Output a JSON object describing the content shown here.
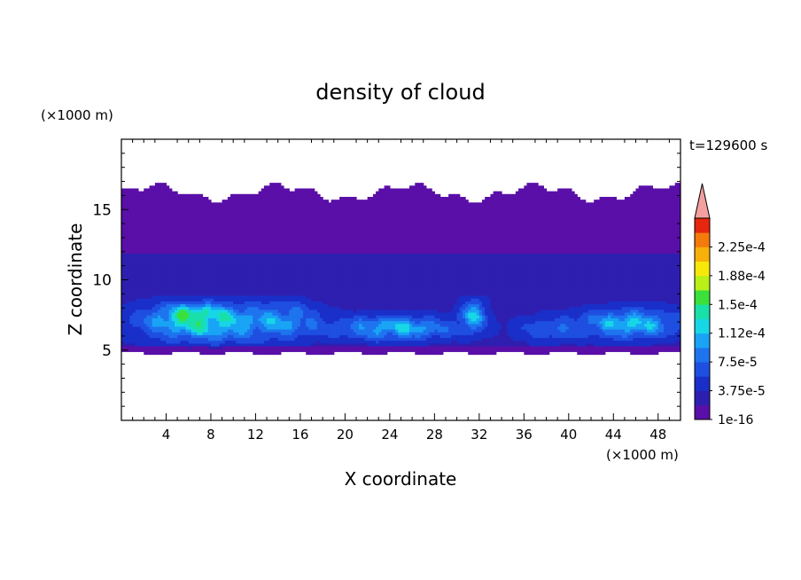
{
  "chart_data": {
    "type": "heatmap",
    "title": "density of cloud",
    "time_label": "t=129600 s",
    "xlabel": "X coordinate",
    "ylabel": "Z coordinate",
    "x_unit": "(×1000 m)",
    "y_unit": "(×1000 m)",
    "xlim": [
      0,
      50
    ],
    "ylim": [
      0,
      20
    ],
    "x_ticks": [
      4,
      8,
      12,
      16,
      20,
      24,
      28,
      32,
      36,
      40,
      44,
      48
    ],
    "y_ticks": [
      5,
      10,
      15
    ],
    "colorbar": {
      "tick_labels": [
        "1e-16",
        "3.75e-5",
        "7.5e-5",
        "1.12e-4",
        "1.5e-4",
        "1.88e-4",
        "2.25e-4"
      ],
      "levels": [
        1e-16,
        1.875e-05,
        3.75e-05,
        5.625e-05,
        7.5e-05,
        9.375e-05,
        0.0001125,
        0.00013125,
        0.00015,
        0.00016875,
        0.0001875,
        0.00020625,
        0.000225,
        0.00024375
      ],
      "colors": [
        "#5a0fa8",
        "#2e1fb0",
        "#1a2fc8",
        "#1e4fe0",
        "#1e74ee",
        "#19a4f5",
        "#17d7e6",
        "#18e0a8",
        "#3be03a",
        "#b8f018",
        "#f7e80c",
        "#f7b10a",
        "#f57a0c",
        "#e6260e"
      ],
      "overflow_color": "#f4a0a0"
    },
    "regions": [
      {
        "x_range": [
          0,
          50
        ],
        "z_range": [
          4.6,
          17.0
        ],
        "approx_value": 1e-16,
        "description": "background cloud layer"
      },
      {
        "x_range": [
          0,
          50
        ],
        "z_range": [
          9.0,
          12.0
        ],
        "approx_value": 1.5e-05
      },
      {
        "x_range": [
          0.5,
          17
        ],
        "z_range": [
          5.0,
          9.0
        ],
        "approx_value": 0.00011
      },
      {
        "x_range": [
          4,
          9
        ],
        "z_range": [
          6.8,
          8.2
        ],
        "approx_value": 0.000155
      },
      {
        "x_range": [
          20,
          35
        ],
        "z_range": [
          5.5,
          7.5
        ],
        "approx_value": 9e-05
      },
      {
        "x_range": [
          36,
          50
        ],
        "z_range": [
          5.5,
          8.0
        ],
        "approx_value": 0.0001
      }
    ]
  }
}
